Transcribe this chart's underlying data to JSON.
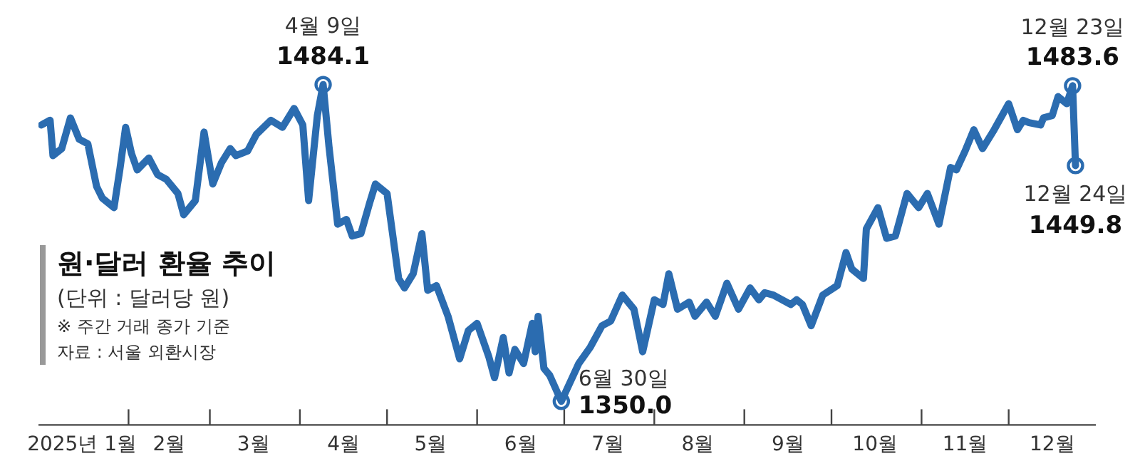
{
  "chart_data": {
    "type": "line",
    "title": "원·달러 환율 추이",
    "subtitle": "(단위 : 달러당 원)",
    "annotations": [
      "※ 주간 거래 종가 기준",
      "자료 : 서울 외환시장",
      {
        "text": "4월 9일",
        "x": "2025-04-09",
        "y": 1484.1
      },
      {
        "text": "6월 30일",
        "x": "2025-06-30",
        "y": 1350.0
      },
      {
        "text": "12월 23일",
        "x": "2025-12-23",
        "y": 1483.6
      },
      {
        "text": "12월 24일",
        "x": "2025-12-24",
        "y": 1449.8
      }
    ],
    "x": [
      "2025-01-02",
      "2025-01-05",
      "2025-01-06",
      "2025-01-09",
      "2025-01-12",
      "2025-01-15",
      "2025-01-18",
      "2025-01-21",
      "2025-01-23",
      "2025-01-27",
      "2025-01-29",
      "2025-01-31",
      "2025-02-02",
      "2025-02-04",
      "2025-02-08",
      "2025-02-11",
      "2025-02-14",
      "2025-02-18",
      "2025-02-20",
      "2025-02-24",
      "2025-02-27",
      "2025-03-02",
      "2025-03-05",
      "2025-03-08",
      "2025-03-10",
      "2025-03-14",
      "2025-03-17",
      "2025-03-22",
      "2025-03-26",
      "2025-03-30",
      "2025-04-02",
      "2025-04-04",
      "2025-04-07",
      "2025-04-09",
      "2025-04-11",
      "2025-04-14",
      "2025-04-17",
      "2025-04-19",
      "2025-04-22",
      "2025-04-25",
      "2025-04-27",
      "2025-05-01",
      "2025-05-05",
      "2025-05-07",
      "2025-05-10",
      "2025-05-13",
      "2025-05-15",
      "2025-05-18",
      "2025-05-22",
      "2025-05-26",
      "2025-05-29",
      "2025-06-01",
      "2025-06-05",
      "2025-06-07",
      "2025-06-10",
      "2025-06-12",
      "2025-06-14",
      "2025-06-17",
      "2025-06-20",
      "2025-06-21",
      "2025-06-22",
      "2025-06-24",
      "2025-06-26",
      "2025-06-30",
      "2025-07-06",
      "2025-07-10",
      "2025-07-14",
      "2025-07-17",
      "2025-07-21",
      "2025-07-25",
      "2025-07-28",
      "2025-08-01",
      "2025-08-04",
      "2025-08-06",
      "2025-08-09",
      "2025-08-13",
      "2025-08-15",
      "2025-08-19",
      "2025-08-22",
      "2025-08-26",
      "2025-08-30",
      "2025-09-03",
      "2025-09-06",
      "2025-09-08",
      "2025-09-11",
      "2025-09-17",
      "2025-09-19",
      "2025-09-21",
      "2025-09-24",
      "2025-09-28",
      "2025-10-03",
      "2025-10-06",
      "2025-10-08",
      "2025-10-12",
      "2025-10-13",
      "2025-10-17",
      "2025-10-20",
      "2025-10-23",
      "2025-10-27",
      "2025-10-31",
      "2025-11-03",
      "2025-11-07",
      "2025-11-11",
      "2025-11-13",
      "2025-11-16",
      "2025-11-19",
      "2025-11-22",
      "2025-11-26",
      "2025-12-01",
      "2025-12-04",
      "2025-12-06",
      "2025-12-08",
      "2025-12-12",
      "2025-12-13",
      "2025-12-16",
      "2025-12-18",
      "2025-12-21",
      "2025-12-23",
      "2025-12-24"
    ],
    "series": [
      {
        "color": "#2b6cb0",
        "values": [
          1467,
          1469,
          1454,
          1457,
          1470,
          1461,
          1459,
          1441,
          1436,
          1432,
          1448,
          1466,
          1455,
          1448,
          1453,
          1446,
          1444,
          1438,
          1429,
          1435,
          1464,
          1442,
          1451,
          1457,
          1454,
          1456,
          1463,
          1469,
          1466,
          1474,
          1467,
          1435,
          1471,
          1484.1,
          1458,
          1425,
          1427,
          1420,
          1421,
          1434,
          1442,
          1438,
          1402,
          1398,
          1404,
          1421,
          1397,
          1399,
          1386,
          1368,
          1380,
          1383,
          1369,
          1360,
          1377,
          1362,
          1372,
          1366,
          1383,
          1371,
          1386,
          1364,
          1361,
          1350.0,
          1366,
          1373,
          1382,
          1384,
          1395,
          1389,
          1371,
          1393,
          1391,
          1404,
          1389,
          1392,
          1386,
          1392,
          1386,
          1400,
          1389,
          1398,
          1393,
          1396,
          1395,
          1391,
          1393,
          1391,
          1382,
          1395,
          1399,
          1413,
          1406,
          1402,
          1423,
          1432,
          1419,
          1420,
          1438,
          1432,
          1438,
          1425,
          1449,
          1448,
          1456,
          1465,
          1457,
          1465,
          1476,
          1465,
          1469,
          1468,
          1467,
          1470,
          1471,
          1479,
          1476,
          1483.6,
          1449.8
        ],
        "value_labels": [
          null,
          null,
          null,
          null,
          null,
          null,
          null,
          null,
          null,
          null,
          null,
          null,
          null,
          null,
          null,
          null,
          null,
          null,
          null,
          null,
          null,
          null,
          null,
          null,
          null,
          null,
          null,
          null,
          null,
          null,
          null,
          null,
          null,
          "1484.1",
          null,
          null,
          null,
          null,
          null,
          null,
          null,
          null,
          null,
          null,
          null,
          null,
          null,
          null,
          null,
          null,
          null,
          null,
          null,
          null,
          null,
          null,
          null,
          null,
          null,
          null,
          null,
          null,
          null,
          "1350.0",
          null,
          null,
          null,
          null,
          null,
          null,
          null,
          null,
          null,
          null,
          null,
          null,
          null,
          null,
          null,
          null,
          null,
          null,
          null,
          null,
          null,
          null,
          null,
          null,
          null,
          null,
          null,
          null,
          null,
          null,
          null,
          null,
          null,
          null,
          null,
          null,
          null,
          null,
          null,
          null,
          null,
          null,
          null,
          null,
          null,
          null,
          null,
          null,
          null,
          null,
          null,
          null,
          null,
          "1483.6",
          "1449.8"
        ]
      }
    ],
    "xlim": [
      "2025-01-01",
      "2025-12-31"
    ],
    "xticks": [
      {
        "value": "2025-01-16",
        "label": "2025년 1월"
      },
      {
        "value": "2025-02-01",
        "label": null
      },
      {
        "value": "2025-02-15",
        "label": "2월"
      },
      {
        "value": "2025-03-01",
        "label": null
      },
      {
        "value": "2025-03-16",
        "label": "3월"
      },
      {
        "value": "2025-04-01",
        "label": null
      },
      {
        "value": "2025-04-16",
        "label": "4월"
      },
      {
        "value": "2025-05-01",
        "label": null
      },
      {
        "value": "2025-05-16",
        "label": "5월"
      },
      {
        "value": "2025-06-01",
        "label": null
      },
      {
        "value": "2025-06-16",
        "label": "6월"
      },
      {
        "value": "2025-07-01",
        "label": null
      },
      {
        "value": "2025-07-16",
        "label": "7월"
      },
      {
        "value": "2025-08-01",
        "label": null
      },
      {
        "value": "2025-08-16",
        "label": "8월"
      },
      {
        "value": "2025-09-01",
        "label": null
      },
      {
        "value": "2025-09-16",
        "label": "9월"
      },
      {
        "value": "2025-10-01",
        "label": null
      },
      {
        "value": "2025-10-16",
        "label": "10월"
      },
      {
        "value": "2025-11-01",
        "label": null
      },
      {
        "value": "2025-11-16",
        "label": "11월"
      },
      {
        "value": "2025-12-01",
        "label": null
      },
      {
        "value": "2025-12-16",
        "label": "12월"
      }
    ],
    "tick_labels": "x",
    "grid": false,
    "legend": false,
    "line_style": "solid"
  }
}
